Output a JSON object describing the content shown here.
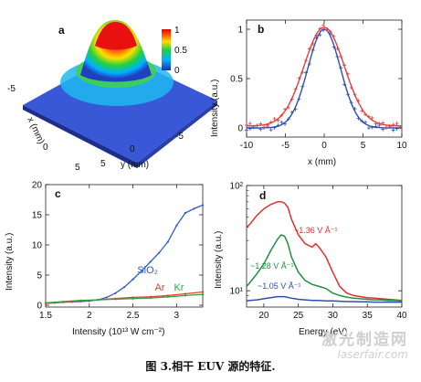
{
  "caption": "图 3.相干 EUV 源的特征.",
  "watermark": {
    "cn": "激光制造网",
    "en": "laserfair.com"
  },
  "panels": {
    "a": {
      "letter": "a"
    },
    "b": {
      "letter": "b"
    },
    "c": {
      "letter": "c"
    },
    "d": {
      "letter": "d"
    }
  },
  "chart_data": [
    {
      "panel": "a",
      "type": "surface",
      "xlabel": "x (mm)",
      "ylabel": "y (mm)",
      "x_ticks": [
        "-5",
        "0",
        "5"
      ],
      "y_ticks": [
        "5",
        "0",
        "-5"
      ],
      "colorbar": {
        "ticks": [
          "1",
          "0.5",
          "0"
        ],
        "range": [
          0,
          1
        ],
        "colors": [
          "#2030a0",
          "#00b0ff",
          "#20d040",
          "#ffe000",
          "#ff6000",
          "#e00000"
        ]
      }
    },
    {
      "panel": "b",
      "type": "line",
      "xlabel": "x (mm)",
      "ylabel": "Intensity (a.u.)",
      "xlim": [
        -10,
        10
      ],
      "ylim": [
        0,
        1.0
      ],
      "x_ticks": [
        -10,
        -5,
        0,
        5,
        10
      ],
      "y_ticks": [
        0,
        0.5,
        1
      ],
      "series": [
        {
          "color": "#3050b0",
          "profile": {
            "center": 0,
            "sigma": 2.1,
            "amplitude": 1.0,
            "offset": 0.0
          }
        },
        {
          "color": "#e04040",
          "profile": {
            "center": 0,
            "sigma": 2.6,
            "amplitude": 1.0,
            "offset": 0.02
          }
        }
      ]
    },
    {
      "panel": "c",
      "type": "line",
      "xlabel": "Intensity (10¹³ W cm⁻²)",
      "ylabel": "Intensity (a.u.)",
      "xlim": [
        1.5,
        3.3
      ],
      "ylim": [
        0,
        20
      ],
      "x_ticks": [
        1.5,
        2,
        2.5,
        3
      ],
      "y_ticks": [
        0,
        5,
        10,
        15,
        20
      ],
      "series": [
        {
          "name": "SiO₂",
          "color": "#3060c0",
          "x": [
            1.5,
            1.6,
            1.7,
            1.8,
            1.9,
            2.0,
            2.1,
            2.2,
            2.3,
            2.4,
            2.5,
            2.6,
            2.7,
            2.8,
            2.9,
            3.0,
            3.1,
            3.2,
            3.3
          ],
          "y": [
            0.3,
            0.4,
            0.5,
            0.55,
            0.6,
            0.7,
            0.9,
            1.3,
            2.0,
            3.0,
            4.3,
            5.7,
            7.2,
            8.7,
            10.5,
            13.2,
            15.3,
            16.0,
            16.6
          ]
        },
        {
          "name": "Ar",
          "color": "#e04030",
          "x": [
            1.5,
            1.7,
            1.9,
            2.1,
            2.3,
            2.5,
            2.7,
            2.9,
            3.1,
            3.3
          ],
          "y": [
            0.3,
            0.5,
            0.7,
            0.9,
            1.1,
            1.3,
            1.4,
            1.6,
            1.9,
            2.2
          ]
        },
        {
          "name": "Kr",
          "color": "#30a040",
          "x": [
            1.5,
            1.7,
            1.9,
            2.1,
            2.3,
            2.5,
            2.7,
            2.9,
            3.1,
            3.3
          ],
          "y": [
            0.4,
            0.6,
            0.8,
            0.9,
            1.0,
            1.1,
            1.2,
            1.4,
            1.6,
            1.8
          ]
        }
      ]
    },
    {
      "panel": "d",
      "type": "line",
      "xlabel": "Energy (eV)",
      "ylabel": "Intensity (a.u.)",
      "y_scale": "log",
      "xlim": [
        17.5,
        40
      ],
      "ylim": [
        7,
        100
      ],
      "x_ticks": [
        20,
        25,
        30,
        35,
        40
      ],
      "y_ticks": [
        {
          "value": 10,
          "label": "10¹"
        },
        {
          "value": 100,
          "label": "10²"
        }
      ],
      "series": [
        {
          "color": "#e03030",
          "label": "~1.36 V Å⁻¹",
          "x": [
            17.5,
            18,
            19,
            20,
            21,
            22,
            22.5,
            23,
            23.5,
            24,
            25,
            26,
            27,
            27.5,
            28,
            29,
            30,
            31,
            32,
            33,
            34,
            35,
            36,
            37,
            38,
            39,
            40
          ],
          "y": [
            40,
            43,
            52,
            60,
            66,
            70,
            70,
            68,
            62,
            48,
            34,
            28,
            26,
            28,
            26,
            21,
            15,
            11,
            9.5,
            9,
            8.8,
            8.6,
            8.5,
            8.4,
            8.3,
            8.2,
            8.1
          ]
        },
        {
          "color": "#209040",
          "label": "~1.28 V Å⁻¹",
          "x": [
            17.5,
            18,
            19,
            20,
            21,
            22,
            22.5,
            23,
            23.5,
            24,
            25,
            26,
            27,
            28,
            29,
            30,
            31,
            32,
            33,
            34,
            35,
            36,
            37,
            38,
            39,
            40
          ],
          "y": [
            11,
            12,
            14.5,
            18,
            24,
            31,
            34,
            33,
            28,
            21,
            15,
            12.5,
            11.5,
            11,
            10.5,
            9.5,
            9,
            8.7,
            8.5,
            8.4,
            8.3,
            8.2,
            8.2,
            8.1,
            8.1,
            8
          ]
        },
        {
          "color": "#3050b0",
          "label": "~1.05 V Å⁻¹",
          "x": [
            17.5,
            18,
            19,
            20,
            21,
            22,
            23,
            24,
            25,
            26,
            27,
            28,
            29,
            30,
            31,
            32,
            33,
            34,
            35,
            36,
            37,
            38,
            39,
            40
          ],
          "y": [
            8.0,
            8.1,
            8.2,
            8.4,
            8.6,
            8.8,
            8.8,
            8.5,
            8.3,
            8.2,
            8.1,
            8.1,
            8.0,
            8.0,
            7.95,
            7.9,
            7.9,
            7.85,
            7.85,
            7.8,
            7.8,
            7.8,
            7.8,
            7.8
          ]
        }
      ]
    }
  ]
}
